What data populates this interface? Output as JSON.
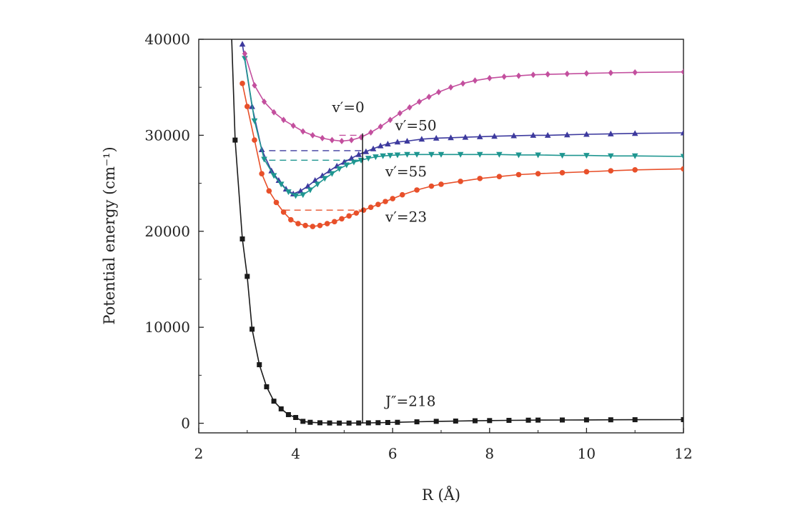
{
  "chart_data": {
    "type": "line",
    "xlabel": "R (Å)",
    "ylabel": "Potential energy (cm⁻¹)",
    "xlim": [
      2,
      12
    ],
    "ylim": [
      -1000,
      40000
    ],
    "xticks": [
      2,
      4,
      6,
      8,
      10,
      12
    ],
    "yticks": [
      0,
      10000,
      20000,
      30000,
      40000
    ],
    "xtick_labels": [
      "2",
      "4",
      "6",
      "8",
      "10",
      "12"
    ],
    "ytick_labels": [
      "0",
      "10000",
      "20000",
      "30000",
      "40000"
    ],
    "grid": false,
    "series": [
      {
        "marker": "square",
        "color": "#1a1a1a",
        "x": [
          2.75,
          2.9,
          3.0,
          3.1,
          3.25,
          3.4,
          3.55,
          3.7,
          3.85,
          4.0,
          4.15,
          4.3,
          4.5,
          4.7,
          4.9,
          5.1,
          5.3,
          5.5,
          5.7,
          5.9,
          6.1,
          6.5,
          6.9,
          7.3,
          7.7,
          8.0,
          8.4,
          8.8,
          9.0,
          9.5,
          10.0,
          10.5,
          11.0,
          12.0
        ],
        "y": [
          29500,
          19200,
          15300,
          9800,
          6100,
          3800,
          2300,
          1500,
          900,
          600,
          200,
          100,
          50,
          30,
          20,
          20,
          30,
          40,
          60,
          80,
          100,
          150,
          200,
          230,
          260,
          280,
          300,
          320,
          330,
          340,
          350,
          360,
          370,
          380
        ]
      },
      {
        "marker": "circle",
        "color": "#e8502a",
        "x": [
          2.9,
          3.0,
          3.15,
          3.3,
          3.45,
          3.6,
          3.75,
          3.9,
          4.05,
          4.2,
          4.35,
          4.5,
          4.65,
          4.8,
          4.95,
          5.1,
          5.25,
          5.4,
          5.55,
          5.7,
          5.85,
          6.0,
          6.2,
          6.5,
          6.8,
          7.0,
          7.4,
          7.8,
          8.2,
          8.6,
          9.0,
          9.5,
          10.0,
          10.5,
          11.0,
          12.0
        ],
        "y": [
          35400,
          33000,
          29500,
          26000,
          24200,
          23000,
          22000,
          21200,
          20800,
          20600,
          20500,
          20600,
          20800,
          21000,
          21300,
          21600,
          21900,
          22200,
          22500,
          22800,
          23100,
          23400,
          23800,
          24300,
          24700,
          24900,
          25200,
          25500,
          25700,
          25900,
          26000,
          26100,
          26200,
          26300,
          26400,
          26500
        ]
      },
      {
        "marker": "triangle-up",
        "color": "#3d3a9e",
        "x": [
          2.9,
          3.1,
          3.3,
          3.5,
          3.65,
          3.8,
          3.95,
          4.1,
          4.25,
          4.4,
          4.55,
          4.7,
          4.85,
          5.0,
          5.15,
          5.3,
          5.45,
          5.6,
          5.75,
          5.9,
          6.1,
          6.3,
          6.6,
          6.9,
          7.2,
          7.5,
          7.8,
          8.1,
          8.5,
          8.9,
          9.2,
          9.6,
          10.0,
          10.5,
          11.0,
          12.0
        ],
        "y": [
          39500,
          33000,
          28500,
          26300,
          25300,
          24400,
          23900,
          24200,
          24700,
          25300,
          25800,
          26300,
          26800,
          27200,
          27600,
          28000,
          28300,
          28600,
          28900,
          29100,
          29300,
          29400,
          29600,
          29700,
          29750,
          29800,
          29850,
          29900,
          29950,
          30000,
          30000,
          30050,
          30100,
          30150,
          30200,
          30250
        ]
      },
      {
        "marker": "triangle-down",
        "color": "#1e9690",
        "x": [
          2.95,
          3.15,
          3.35,
          3.55,
          3.7,
          3.85,
          4.0,
          4.15,
          4.3,
          4.45,
          4.6,
          4.75,
          4.9,
          5.05,
          5.2,
          5.35,
          5.5,
          5.65,
          5.8,
          5.95,
          6.1,
          6.3,
          6.5,
          6.8,
          7.0,
          7.4,
          7.8,
          8.2,
          8.6,
          9.0,
          9.5,
          10.0,
          10.5,
          11.0,
          12.0
        ],
        "y": [
          38000,
          31500,
          27500,
          25800,
          24900,
          24100,
          23700,
          23800,
          24300,
          24900,
          25500,
          26000,
          26500,
          26900,
          27200,
          27400,
          27600,
          27750,
          27850,
          27900,
          27950,
          28000,
          28000,
          28000,
          28000,
          28000,
          28000,
          28000,
          27950,
          27950,
          27900,
          27900,
          27850,
          27850,
          27800
        ]
      },
      {
        "marker": "diamond",
        "color": "#c34f9e",
        "x": [
          2.95,
          3.15,
          3.35,
          3.55,
          3.75,
          3.95,
          4.15,
          4.35,
          4.55,
          4.75,
          4.95,
          5.15,
          5.35,
          5.55,
          5.75,
          5.95,
          6.15,
          6.35,
          6.55,
          6.75,
          6.95,
          7.2,
          7.45,
          7.7,
          8.0,
          8.3,
          8.6,
          8.9,
          9.2,
          9.6,
          10.0,
          10.5,
          11.0,
          12.0
        ],
        "y": [
          38500,
          35200,
          33500,
          32400,
          31600,
          31000,
          30400,
          30000,
          29700,
          29500,
          29400,
          29500,
          29800,
          30300,
          30900,
          31600,
          32300,
          32900,
          33500,
          34000,
          34500,
          35000,
          35400,
          35700,
          35950,
          36100,
          36200,
          36300,
          36350,
          36400,
          36450,
          36500,
          36550,
          36600
        ]
      }
    ],
    "levels": [
      {
        "label": "v′=0",
        "y": 30000,
        "x": [
          4.9,
          5.4
        ],
        "color": "#c34f9e"
      },
      {
        "label": "v′=50",
        "y": 28400,
        "x": [
          3.45,
          5.4
        ],
        "color": "#3d3a9e"
      },
      {
        "label": "v′=55",
        "y": 27400,
        "x": [
          3.45,
          5.4
        ],
        "color": "#1e9690"
      },
      {
        "label": "v′=23",
        "y": 22200,
        "x": [
          3.75,
          5.4
        ],
        "color": "#e8502a"
      }
    ],
    "vertical_line": {
      "x": 5.38,
      "y": [
        0,
        30200
      ]
    },
    "annotations": [
      {
        "text": "v′=0",
        "x": 4.75,
        "y": 32400
      },
      {
        "text": "v′=50",
        "x": 6.05,
        "y": 30500
      },
      {
        "text": "v′=55",
        "x": 5.85,
        "y": 25700
      },
      {
        "text": "v′=23",
        "x": 5.85,
        "y": 21000
      },
      {
        "text": "J″=218",
        "x": 5.85,
        "y": 1800
      }
    ]
  }
}
